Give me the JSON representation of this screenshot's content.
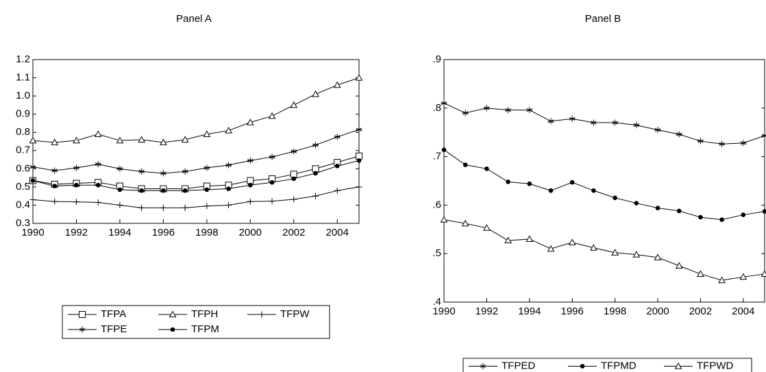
{
  "chart_data": [
    {
      "type": "line",
      "title": "Panel A",
      "x": [
        1990,
        1991,
        1992,
        1993,
        1994,
        1995,
        1996,
        1997,
        1998,
        1999,
        2000,
        2001,
        2002,
        2003,
        2004,
        2005
      ],
      "xlim": [
        1990,
        2005
      ],
      "xticks": [
        1990,
        1992,
        1994,
        1996,
        1998,
        2000,
        2002,
        2004
      ],
      "ylim": [
        0.3,
        1.2
      ],
      "yticks": [
        {
          "value": 1.2,
          "label": "1.2"
        },
        1.1,
        {
          "value": 1,
          "label": "1.0"
        },
        0.9,
        0.8,
        0.7,
        0.6,
        0.5,
        0.4,
        0.3
      ],
      "series": [
        {
          "name": "TFPA",
          "color": "#000000",
          "marker": "square",
          "values": [
            0.535,
            0.515,
            0.52,
            0.525,
            0.505,
            0.49,
            0.49,
            0.49,
            0.505,
            0.51,
            0.535,
            0.545,
            0.57,
            0.6,
            0.635,
            0.67
          ]
        },
        {
          "name": "TFPH",
          "color": "#000000",
          "marker": "triangle",
          "values": [
            0.755,
            0.745,
            0.755,
            0.79,
            0.755,
            0.76,
            0.745,
            0.76,
            0.79,
            0.81,
            0.855,
            0.89,
            0.95,
            1.01,
            1.06,
            1.1
          ]
        },
        {
          "name": "TFPW",
          "color": "#000000",
          "marker": "plus",
          "values": [
            0.43,
            0.42,
            0.418,
            0.415,
            0.4,
            0.385,
            0.385,
            0.385,
            0.395,
            0.4,
            0.42,
            0.422,
            0.432,
            0.45,
            0.48,
            0.5
          ]
        },
        {
          "name": "TFPE",
          "color": "#000000",
          "marker": "star",
          "values": [
            0.61,
            0.59,
            0.605,
            0.625,
            0.6,
            0.585,
            0.575,
            0.585,
            0.605,
            0.62,
            0.645,
            0.665,
            0.695,
            0.73,
            0.775,
            0.815
          ]
        },
        {
          "name": "TFPM",
          "color": "#000000",
          "marker": "circle",
          "values": [
            0.535,
            0.505,
            0.51,
            0.51,
            0.485,
            0.48,
            0.48,
            0.48,
            0.485,
            0.49,
            0.51,
            0.525,
            0.545,
            0.575,
            0.615,
            0.645
          ]
        }
      ]
    },
    {
      "type": "line",
      "title": "Panel B",
      "x": [
        1990,
        1991,
        1992,
        1993,
        1994,
        1995,
        1996,
        1997,
        1998,
        1999,
        2000,
        2001,
        2002,
        2003,
        2004,
        2005
      ],
      "xlim": [
        1990,
        2005
      ],
      "xticks": [
        1990,
        1992,
        1994,
        1996,
        1998,
        2000,
        2002,
        2004
      ],
      "ylim": [
        0.4,
        0.9
      ],
      "yticks": [
        {
          "value": 0.9,
          "label": ".9"
        },
        {
          "value": 0.8,
          "label": ".8"
        },
        {
          "value": 0.7,
          "label": ".7"
        },
        {
          "value": 0.6,
          "label": ".6"
        },
        {
          "value": 0.5,
          "label": ".5"
        },
        {
          "value": 0.4,
          "label": ".4"
        }
      ],
      "series": [
        {
          "name": "TFPED",
          "color": "#000000",
          "marker": "star",
          "values": [
            0.81,
            0.79,
            0.8,
            0.796,
            0.796,
            0.773,
            0.778,
            0.77,
            0.77,
            0.765,
            0.755,
            0.746,
            0.732,
            0.726,
            0.728,
            0.743
          ]
        },
        {
          "name": "TFPMD",
          "color": "#000000",
          "marker": "circle",
          "values": [
            0.714,
            0.683,
            0.675,
            0.648,
            0.644,
            0.63,
            0.647,
            0.63,
            0.615,
            0.604,
            0.594,
            0.588,
            0.575,
            0.57,
            0.58,
            0.587
          ]
        },
        {
          "name": "TFPWD",
          "color": "#000000",
          "marker": "triangle",
          "values": [
            0.57,
            0.562,
            0.553,
            0.527,
            0.53,
            0.51,
            0.523,
            0.512,
            0.502,
            0.498,
            0.492,
            0.475,
            0.458,
            0.445,
            0.452,
            0.458
          ]
        }
      ]
    }
  ]
}
